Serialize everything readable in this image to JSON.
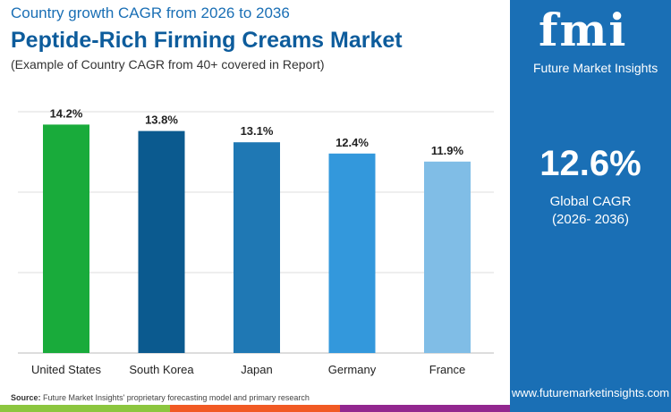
{
  "header": {
    "subtitle": "Country growth CAGR from 2026 to 2036",
    "title": "Peptide-Rich Firming Creams Market",
    "note": "(Example of Country CAGR from 40+ covered in Report)"
  },
  "sidebar": {
    "logo": "fmi",
    "logo_text": "Future Market Insights",
    "cagr_value": "12.6%",
    "cagr_label": "Global CAGR",
    "cagr_period": "(2026- 2036)",
    "url": "www.futuremarketinsights.com"
  },
  "footer": {
    "source_label": "Source:",
    "source_text": "Future Market Insights' proprietary forecasting model and primary research"
  },
  "colors": {
    "brand": "#1a6fb5",
    "stripes": [
      "#8cc63f",
      "#f15a24",
      "#92278f",
      "#1a6fb5"
    ]
  },
  "chart_data": {
    "type": "bar",
    "categories": [
      "United States",
      "South Korea",
      "Japan",
      "Germany",
      "France"
    ],
    "values": [
      14.2,
      13.8,
      13.1,
      12.4,
      11.9
    ],
    "labels": [
      "14.2%",
      "13.8%",
      "13.1%",
      "12.4%",
      "11.9%"
    ],
    "colors": [
      "#19ab3b",
      "#0b5a8f",
      "#1f78b4",
      "#3398dc",
      "#80bde6"
    ],
    "ylim": [
      0,
      15
    ],
    "grid": true,
    "xlabel": "",
    "ylabel": ""
  }
}
